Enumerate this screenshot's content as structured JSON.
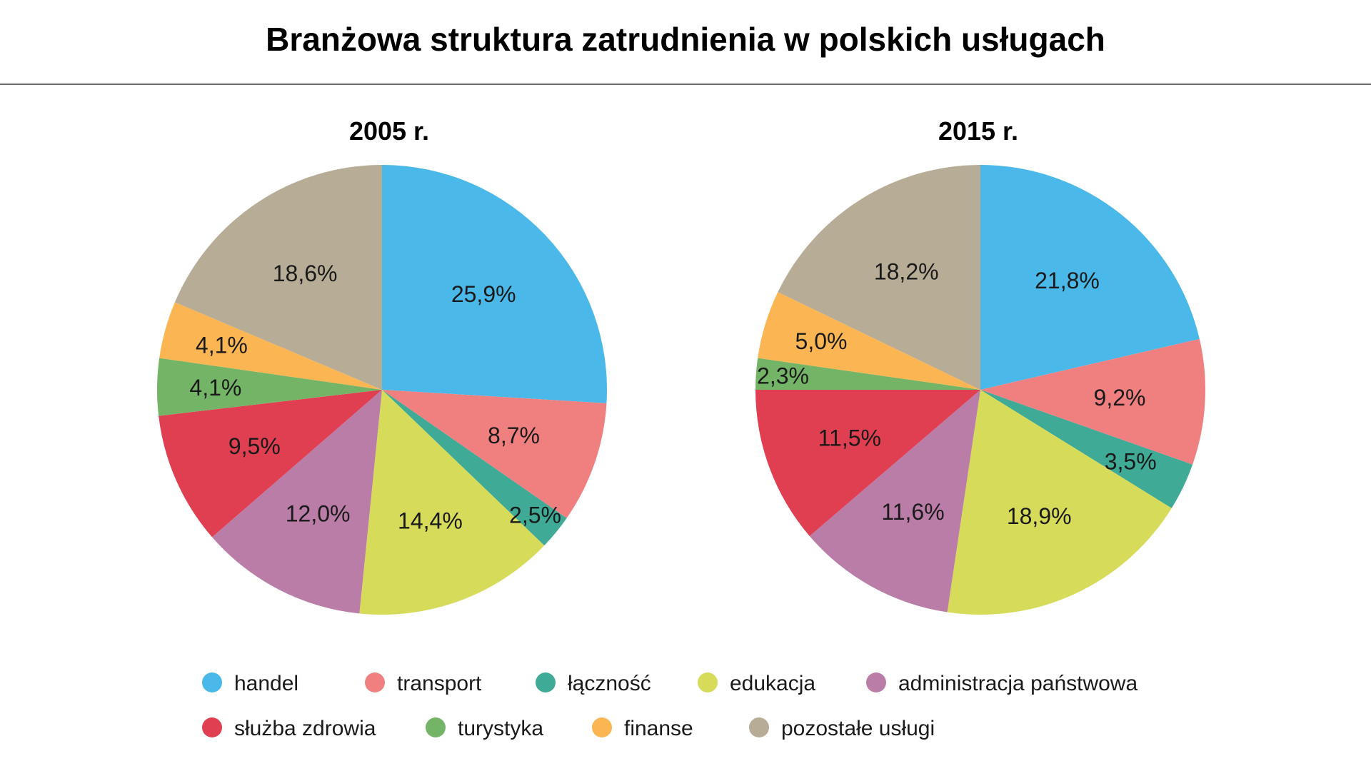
{
  "title": "Branżowa struktura zatrudnienia w polskich usługach",
  "legend": [
    {
      "label": "handel",
      "color": "#4AB8E8"
    },
    {
      "label": "transport",
      "color": "#F08080"
    },
    {
      "label": "łączność",
      "color": "#3FAA96"
    },
    {
      "label": "edukacja",
      "color": "#D6DB5A"
    },
    {
      "label": "administracja państwowa",
      "color": "#B97DA8"
    },
    {
      "label": "służba zdrowia",
      "color": "#E03F52"
    },
    {
      "label": "turystyka",
      "color": "#74B466"
    },
    {
      "label": "finanse",
      "color": "#FBB552"
    },
    {
      "label": "pozostałe usługi",
      "color": "#B7AD97"
    }
  ],
  "chart_data": [
    {
      "type": "pie",
      "title": "2005 r.",
      "categories": [
        "handel",
        "transport",
        "łączność",
        "edukacja",
        "administracja państwowa",
        "służba zdrowia",
        "turystyka",
        "finanse",
        "pozostałe usługi"
      ],
      "values": [
        25.9,
        8.7,
        2.5,
        14.4,
        12.0,
        9.5,
        4.1,
        4.1,
        18.6
      ],
      "labels": [
        "25,9%",
        "8,7%",
        "2,5%",
        "14,4%",
        "12,0%",
        "9,5%",
        "4,1%",
        "4,1%",
        "18,6%"
      ]
    },
    {
      "type": "pie",
      "title": "2015 r.",
      "categories": [
        "handel",
        "transport",
        "łączność",
        "edukacja",
        "administracja państwowa",
        "służba zdrowia",
        "turystyka",
        "finanse",
        "pozostałe usługi"
      ],
      "values": [
        21.8,
        9.2,
        3.5,
        18.9,
        11.6,
        11.5,
        2.3,
        5.0,
        18.2
      ],
      "labels": [
        "21,8%",
        "9,2%",
        "3,5%",
        "18,9%",
        "11,6%",
        "11,5%",
        "2,3%",
        "5,0%",
        "18,2%"
      ]
    }
  ]
}
